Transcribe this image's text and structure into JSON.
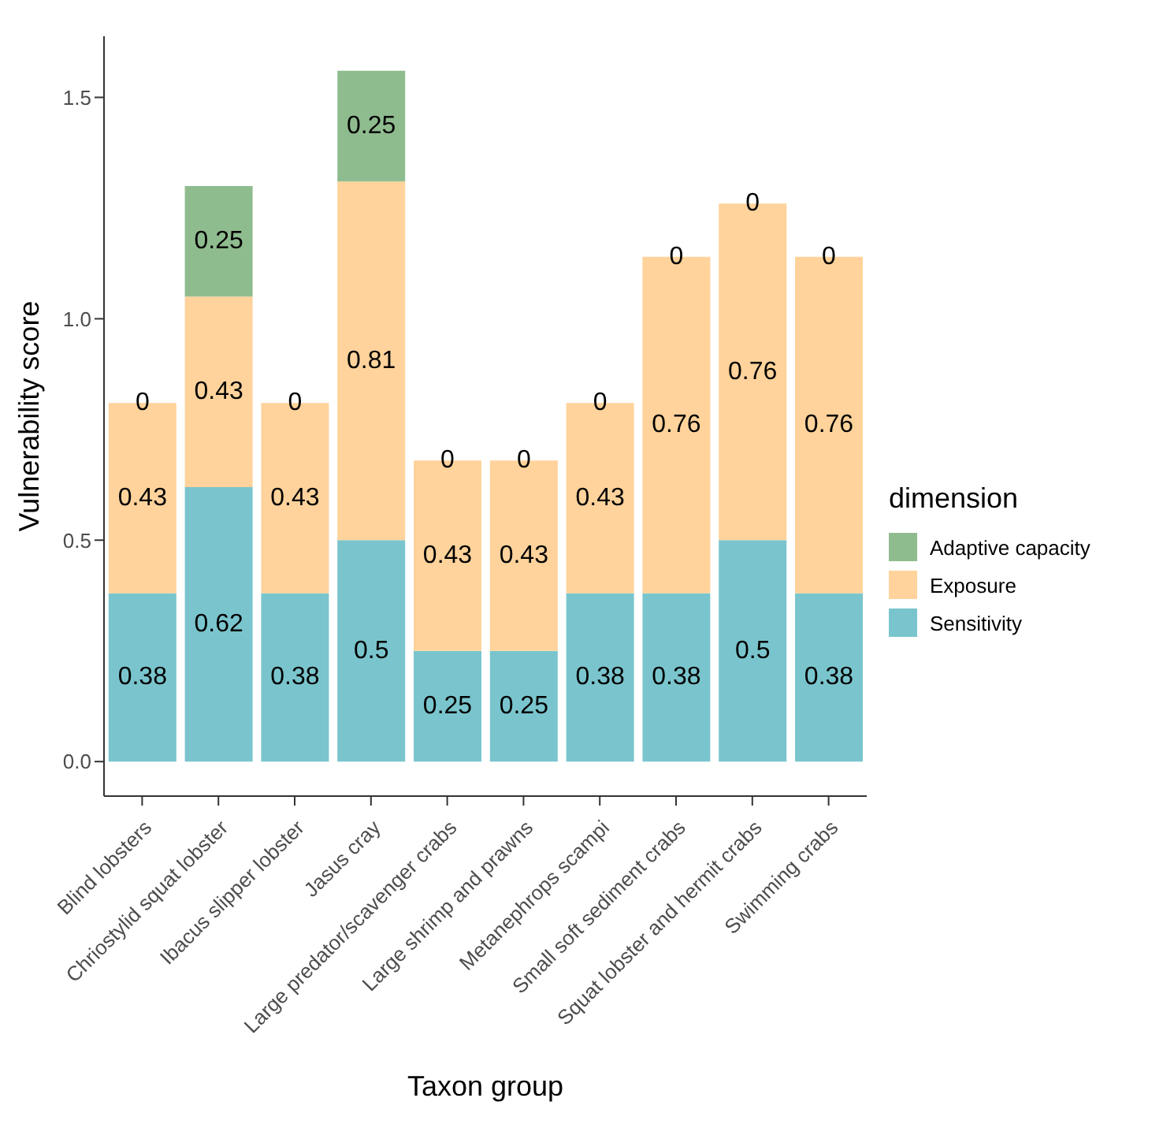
{
  "chart_data": {
    "type": "bar",
    "stacked": true,
    "xlabel": "Taxon group",
    "ylabel": "Vulnerability score",
    "legend_title": "dimension",
    "legend": "right",
    "data_labels": true,
    "categories": [
      "Blind lobsters",
      "Chriostylid squat lobster",
      "Ibacus slipper lobster",
      "Jasus cray",
      "Large predator/scavenger crabs",
      "Large shrimp and prawns",
      "Metanephrops scampi",
      "Small soft sediment crabs",
      "Squat lobster and hermit crabs",
      "Swimming crabs"
    ],
    "series": [
      {
        "name": "Sensitivity",
        "color": "#7ac5cd",
        "values": [
          0.38,
          0.62,
          0.38,
          0.5,
          0.25,
          0.25,
          0.38,
          0.38,
          0.5,
          0.38
        ]
      },
      {
        "name": "Exposure",
        "color": "#ffd39b",
        "values": [
          0.43,
          0.43,
          0.43,
          0.81,
          0.43,
          0.43,
          0.43,
          0.76,
          0.76,
          0.76
        ]
      },
      {
        "name": "Adaptive capacity",
        "color": "#8fbc8f",
        "values": [
          0,
          0.25,
          0,
          0.25,
          0,
          0,
          0,
          0,
          0,
          0
        ]
      }
    ],
    "ylim": [
      -0.078,
      1.638
    ],
    "yticks": [
      {
        "value": 0,
        "label": "0.0"
      },
      {
        "value": 0.5,
        "label": "0.5"
      },
      {
        "value": 1,
        "label": "1.0"
      },
      {
        "value": 1.5,
        "label": "1.5"
      }
    ]
  }
}
